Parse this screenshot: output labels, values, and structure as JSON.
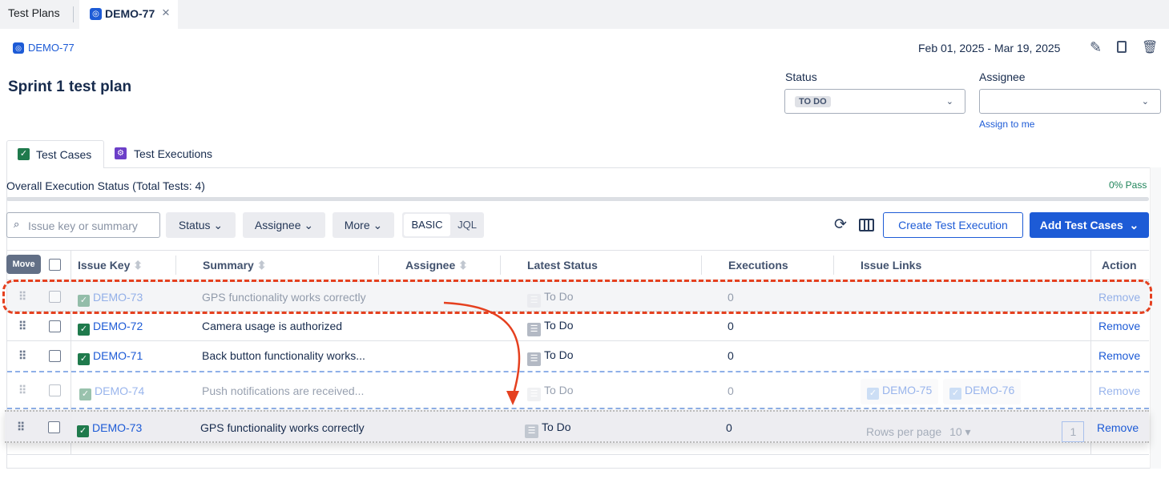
{
  "tabs": [
    {
      "label": "Test Plans"
    },
    {
      "label": "DEMO-77",
      "close": "×"
    }
  ],
  "header": {
    "key": "DEMO-77",
    "title": "Sprint 1 test plan",
    "date_range": "Feb 01, 2025 - Mar 19, 2025"
  },
  "status_field": {
    "label": "Status",
    "value": "TO DO"
  },
  "assignee_field": {
    "label": "Assignee",
    "value": "",
    "assign_link": "Assign to me"
  },
  "content_tabs": [
    {
      "label": "Test Cases",
      "active": true
    },
    {
      "label": "Test Executions"
    }
  ],
  "progress": {
    "label": "Overall Execution Status (Total Tests: 4)",
    "pass_label": "0% Pass",
    "pass_percent": 0
  },
  "toolbar": {
    "search_placeholder": "Issue key or summary",
    "status": "Status",
    "assignee": "Assignee",
    "more": "More",
    "basic": "BASIC",
    "jql": "JQL",
    "create_execution": "Create Test Execution",
    "add_test_cases": "Add Test Cases"
  },
  "table": {
    "move_tooltip": "Move",
    "columns": [
      "Issue Key",
      "Summary",
      "Assignee",
      "Latest Status",
      "Executions",
      "Issue Links",
      "Action"
    ],
    "rows": [
      {
        "key": "DEMO-73",
        "summary": "GPS functionality works correctly",
        "status": "To Do",
        "executions": "0",
        "links": [],
        "action": "Remove",
        "state": "drag-origin"
      },
      {
        "key": "DEMO-72",
        "summary": "Camera usage is authorized",
        "status": "To Do",
        "executions": "0",
        "links": [],
        "action": "Remove"
      },
      {
        "key": "DEMO-71",
        "summary": "Back button functionality works...",
        "status": "To Do",
        "executions": "0",
        "links": [],
        "action": "Remove"
      },
      {
        "key": "DEMO-74",
        "summary": "Push notifications are received...",
        "status": "To Do",
        "executions": "0",
        "links": [
          "DEMO-75",
          "DEMO-76"
        ],
        "action": "Remove",
        "state": "drop-target"
      },
      {
        "key": "DEMO-73",
        "summary": "GPS functionality works correctly",
        "status": "To Do",
        "executions": "0",
        "links": [],
        "action": "Remove",
        "state": "dragging"
      }
    ],
    "pagination": {
      "rows_per_page_label": "Rows per page",
      "rows_per_page": "10",
      "page": "1"
    }
  },
  "colors": {
    "accent": "#1d5bd6",
    "annotation": "#e5401f",
    "pass": "#1f845a"
  }
}
